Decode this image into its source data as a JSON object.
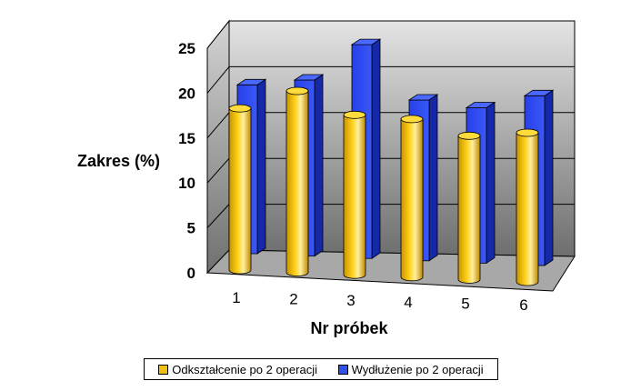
{
  "chart_data": {
    "type": "bar",
    "variant": "3d-clustered-cylinder",
    "title": "",
    "xlabel": "Nr próbek",
    "ylabel": "Zakres (%)",
    "ylim": [
      0,
      25
    ],
    "yticks": [
      0,
      5,
      10,
      15,
      20,
      25
    ],
    "categories": [
      "1",
      "2",
      "3",
      "4",
      "5",
      "6"
    ],
    "series": [
      {
        "name": "Odkształcenie po 2 operacji",
        "color": "#F0C010",
        "values": [
          18.0,
          20.2,
          17.8,
          17.6,
          16.0,
          16.6
        ]
      },
      {
        "name": "Wydłużenie po 2 operacji",
        "color": "#3050F0",
        "values": [
          19.1,
          19.9,
          24.1,
          18.2,
          17.6,
          19.2
        ]
      }
    ],
    "grid": true,
    "legend_position": "bottom"
  }
}
